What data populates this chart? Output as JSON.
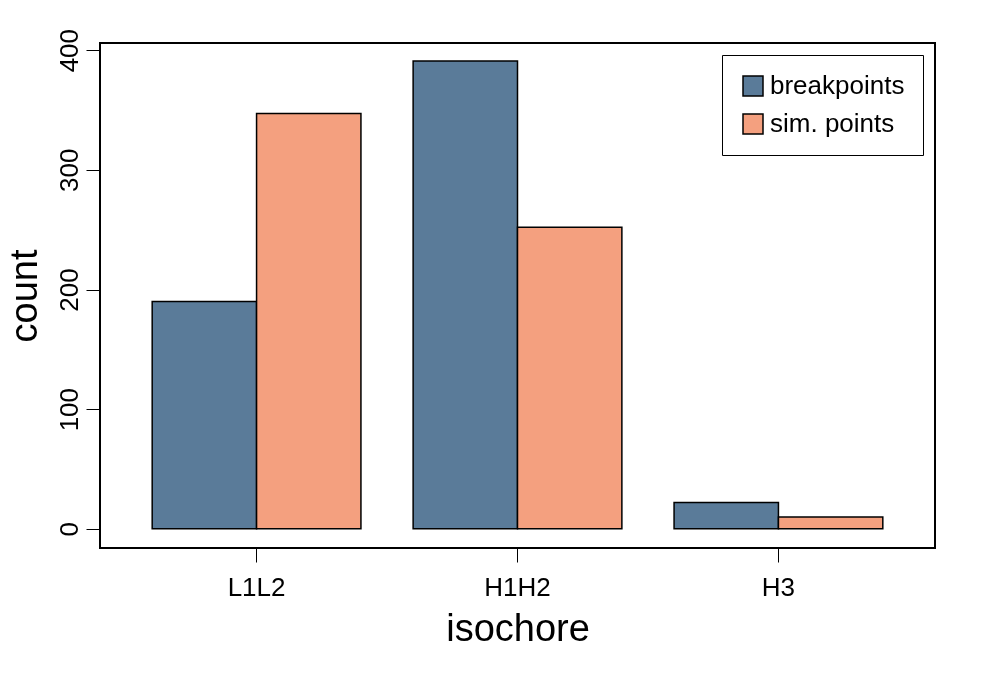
{
  "chart_data": {
    "type": "bar",
    "xlabel": "isochore",
    "ylabel": "count",
    "categories": [
      "L1L2",
      "H1H2",
      "H3"
    ],
    "series": [
      {
        "name": "breakpoints",
        "color": "#5a7b99",
        "values": [
          190,
          391,
          22
        ]
      },
      {
        "name": "sim. points",
        "color": "#f4a07f",
        "values": [
          347,
          252,
          10
        ]
      }
    ],
    "ylim": [
      -16,
      406
    ],
    "yticks": [
      0,
      100,
      200,
      300,
      400
    ],
    "grid": false,
    "legend": "top right"
  }
}
